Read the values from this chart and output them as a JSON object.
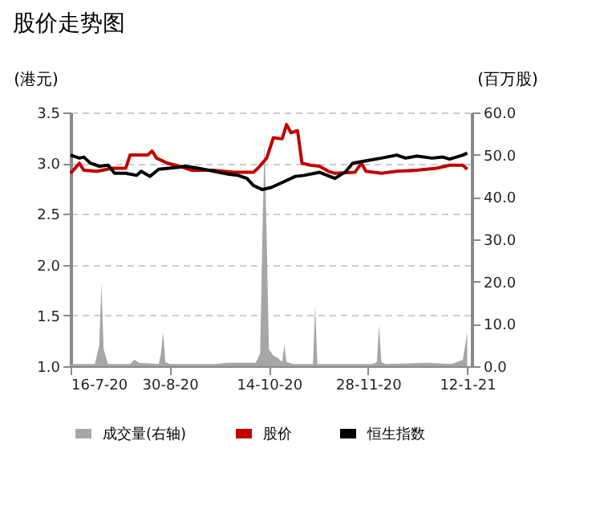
{
  "chart_data": {
    "type": "line",
    "title": "股价走势图",
    "ylabel": "(港元)",
    "y2label": "(百万股)",
    "xlim": [
      "2020-07-16",
      "2021-01-14"
    ],
    "xticks": [
      {
        "value": "2020-07-16",
        "label": "16-7-20"
      },
      {
        "value": "2020-08-30",
        "label": "30-8-20"
      },
      {
        "value": "2020-10-14",
        "label": "14-10-20"
      },
      {
        "value": "2020-11-28",
        "label": "28-11-20"
      },
      {
        "value": "2021-01-12",
        "label": "12-1-21"
      }
    ],
    "ylim": [
      1.0,
      3.5
    ],
    "yticks": [
      {
        "value": 1,
        "label": "1.0"
      },
      1.5,
      {
        "value": 2,
        "label": "2.0"
      },
      2.5,
      {
        "value": 3,
        "label": "3.0"
      },
      3.5
    ],
    "y2lim": [
      0,
      60
    ],
    "y2ticks": [
      {
        "value": 0,
        "label": "0.0"
      },
      {
        "value": 10,
        "label": "10.0"
      },
      {
        "value": 20,
        "label": "20.0"
      },
      {
        "value": 30,
        "label": "30.0"
      },
      {
        "value": 40,
        "label": "40.0"
      },
      {
        "value": 50,
        "label": "50.0"
      },
      {
        "value": 60,
        "label": "60.0"
      }
    ],
    "grid": "y",
    "legend": "bottom",
    "series": [
      {
        "name": "成交量(右轴)",
        "type": "area",
        "axis": "y2",
        "color": "#a6a6a6",
        "x": [
          "2020-07-16",
          "2020-07-27",
          "2020-07-29",
          "2020-07-30",
          "2020-07-31",
          "2020-08-02",
          "2020-08-12",
          "2020-08-14",
          "2020-08-16",
          "2020-08-25",
          "2020-08-26",
          "2020-08-27",
          "2020-08-28",
          "2020-08-30",
          "2020-09-20",
          "2020-09-25",
          "2020-10-08",
          "2020-10-10",
          "2020-10-11",
          "2020-10-12",
          "2020-10-13",
          "2020-10-14",
          "2020-10-16",
          "2020-10-18",
          "2020-10-20",
          "2020-10-21",
          "2020-10-22",
          "2020-10-25",
          "2020-11-03",
          "2020-11-04",
          "2020-11-05",
          "2020-11-30",
          "2020-12-02",
          "2020-12-03",
          "2020-12-04",
          "2020-12-06",
          "2020-12-25",
          "2021-01-05",
          "2021-01-10",
          "2021-01-12"
        ],
        "values": [
          0.5,
          0.5,
          5,
          19.5,
          4,
          0.5,
          0.5,
          1.5,
          0.8,
          0.5,
          3,
          8,
          1,
          0.5,
          0.5,
          0.8,
          0.8,
          3,
          30,
          53,
          30,
          4,
          2.5,
          2,
          1,
          5,
          1,
          0.5,
          0.5,
          14.4,
          0.5,
          0.5,
          1,
          9.8,
          1,
          0.5,
          0.8,
          0.5,
          1.5,
          8
        ]
      },
      {
        "name": "股价",
        "color": "#c00000",
        "x": [
          "2020-07-16",
          "2020-07-20",
          "2020-07-22",
          "2020-07-28",
          "2020-08-04",
          "2020-08-10",
          "2020-08-12",
          "2020-08-20",
          "2020-08-22",
          "2020-08-24",
          "2020-08-29",
          "2020-09-05",
          "2020-09-09",
          "2020-09-19",
          "2020-09-28",
          "2020-10-07",
          "2020-10-09",
          "2020-10-13",
          "2020-10-16",
          "2020-10-20",
          "2020-10-22",
          "2020-10-24",
          "2020-10-27",
          "2020-10-29",
          "2020-11-02",
          "2020-11-06",
          "2020-11-10",
          "2020-11-13",
          "2020-11-22",
          "2020-11-25",
          "2020-11-27",
          "2020-12-04",
          "2020-12-11",
          "2020-12-20",
          "2020-12-29",
          "2021-01-04",
          "2021-01-10",
          "2021-01-12"
        ],
        "values": [
          2.9,
          3.0,
          2.93,
          2.92,
          2.95,
          2.95,
          3.08,
          3.08,
          3.12,
          3.05,
          3.0,
          2.96,
          2.93,
          2.93,
          2.91,
          2.91,
          2.95,
          3.05,
          3.25,
          3.24,
          3.38,
          3.3,
          3.32,
          3.0,
          2.98,
          2.97,
          2.92,
          2.9,
          2.91,
          3.0,
          2.92,
          2.9,
          2.92,
          2.93,
          2.95,
          2.98,
          2.98,
          2.94
        ]
      },
      {
        "name": "恒生指数",
        "color": "#000000",
        "x": [
          "2020-07-16",
          "2020-07-20",
          "2020-07-22",
          "2020-07-25",
          "2020-07-29",
          "2020-08-02",
          "2020-08-05",
          "2020-08-10",
          "2020-08-15",
          "2020-08-17",
          "2020-08-21",
          "2020-08-25",
          "2020-09-03",
          "2020-09-06",
          "2020-09-12",
          "2020-09-19",
          "2020-09-26",
          "2020-09-30",
          "2020-10-04",
          "2020-10-07",
          "2020-10-11",
          "2020-10-15",
          "2020-10-21",
          "2020-10-26",
          "2020-10-30",
          "2020-11-06",
          "2020-11-13",
          "2020-11-18",
          "2020-11-21",
          "2020-11-26",
          "2020-12-04",
          "2020-12-11",
          "2020-12-15",
          "2020-12-20",
          "2020-12-27",
          "2021-01-01",
          "2021-01-04",
          "2021-01-10",
          "2021-01-12"
        ],
        "values": [
          3.08,
          3.05,
          3.06,
          3.0,
          2.97,
          2.98,
          2.9,
          2.9,
          2.88,
          2.92,
          2.87,
          2.94,
          2.96,
          2.97,
          2.95,
          2.92,
          2.89,
          2.88,
          2.85,
          2.78,
          2.74,
          2.76,
          2.82,
          2.87,
          2.88,
          2.91,
          2.85,
          2.92,
          3.0,
          3.02,
          3.05,
          3.08,
          3.05,
          3.07,
          3.05,
          3.06,
          3.04,
          3.08,
          3.1
        ]
      }
    ]
  }
}
